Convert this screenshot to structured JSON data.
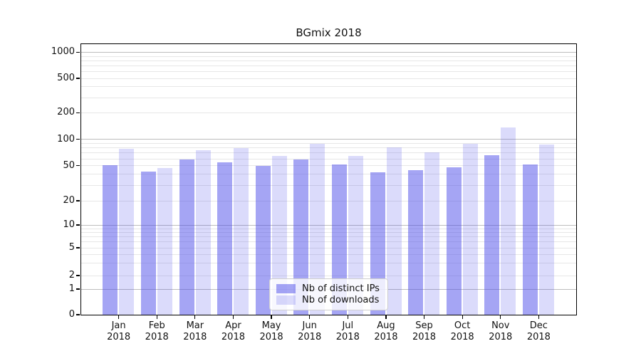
{
  "figure": {
    "title": "BGmix 2018",
    "background": "#ffffff"
  },
  "axes": {
    "y_tick_labels": [
      "0",
      "1",
      "2",
      "5",
      "10",
      "20",
      "50",
      "100",
      "200",
      "500",
      "1000"
    ],
    "x_tick_months": [
      "Jan",
      "Feb",
      "Mar",
      "Apr",
      "May",
      "Jun",
      "Jul",
      "Aug",
      "Sep",
      "Oct",
      "Nov",
      "Dec"
    ],
    "x_tick_year": "2018"
  },
  "legend": {
    "items": [
      {
        "label": "Nb of distinct IPs",
        "swatch_color": "rgba(75,75,234,0.5)"
      },
      {
        "label": "Nb of downloads",
        "swatch_color": "rgba(75,75,234,0.2)"
      }
    ]
  },
  "colors": {
    "bar_fill_ips": "rgba(75,75,234,0.5)",
    "bar_fill_downloads": "rgba(75,75,234,0.2)",
    "bar_base": "#4b4bea",
    "grid_minor": "#e7e7e7",
    "grid_major": "#bdbdbd",
    "spine": "#000000",
    "text": "#111111"
  },
  "chart_data": {
    "type": "bar",
    "title": "BGmix 2018",
    "categories": [
      "Jan 2018",
      "Feb 2018",
      "Mar 2018",
      "Apr 2018",
      "May 2018",
      "Jun 2018",
      "Jul 2018",
      "Aug 2018",
      "Sep 2018",
      "Oct 2018",
      "Nov 2018",
      "Dec 2018"
    ],
    "series": [
      {
        "name": "Nb of distinct IPs",
        "values": [
          50,
          43,
          58,
          54,
          49,
          59,
          51,
          42,
          44,
          48,
          66,
          51
        ]
      },
      {
        "name": "Nb of downloads",
        "values": [
          77,
          47,
          75,
          79,
          64,
          89,
          64,
          80,
          70,
          89,
          136,
          87
        ]
      }
    ],
    "xlabel": "",
    "ylabel": "",
    "yscale": "symlog-like",
    "y_ticks": [
      0,
      1,
      2,
      5,
      10,
      20,
      50,
      100,
      200,
      500,
      1000
    ],
    "ylim": [
      0,
      1300
    ],
    "grid": "horizontal log major+minor",
    "legend_position": "lower center"
  }
}
